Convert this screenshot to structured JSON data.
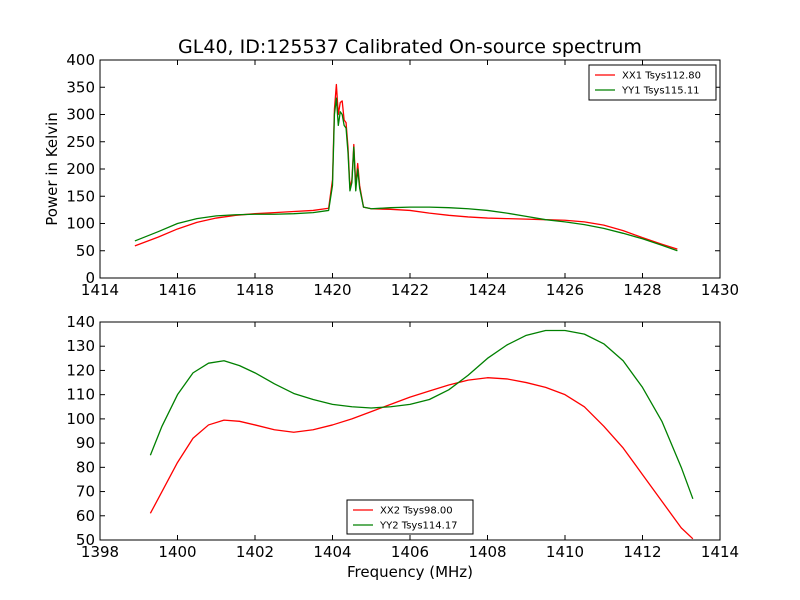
{
  "chart_data": [
    {
      "type": "line",
      "title": "GL40, ID:125537 Calibrated On-source spectrum",
      "xlabel": "",
      "ylabel": "Power in Kelvin",
      "xlim": [
        1414,
        1430
      ],
      "ylim": [
        0,
        400
      ],
      "xticks": [
        1414,
        1416,
        1418,
        1420,
        1422,
        1424,
        1426,
        1428,
        1430
      ],
      "yticks": [
        0,
        50,
        100,
        150,
        200,
        250,
        300,
        350,
        400
      ],
      "grid": false,
      "legend_position": "upper right",
      "series": [
        {
          "name": "XX1 Tsys112.80",
          "color": "#ff0000",
          "x": [
            1414.9,
            1415.5,
            1416,
            1416.5,
            1417,
            1417.5,
            1418,
            1418.5,
            1419,
            1419.5,
            1419.9,
            1420.0,
            1420.05,
            1420.1,
            1420.15,
            1420.2,
            1420.25,
            1420.3,
            1420.35,
            1420.4,
            1420.45,
            1420.5,
            1420.55,
            1420.6,
            1420.65,
            1420.7,
            1420.8,
            1421.0,
            1421.5,
            1422,
            1422.5,
            1423,
            1423.5,
            1424,
            1424.5,
            1425,
            1425.5,
            1426,
            1426.5,
            1427,
            1427.5,
            1428,
            1428.5,
            1428.9
          ],
          "y": [
            59,
            75,
            90,
            102,
            110,
            115,
            118,
            120,
            122,
            124,
            128,
            180,
            310,
            355,
            300,
            322,
            325,
            290,
            285,
            240,
            165,
            180,
            245,
            170,
            210,
            170,
            130,
            127,
            126,
            124,
            119,
            115,
            112,
            110,
            109,
            108,
            107,
            106,
            103,
            97,
            87,
            74,
            62,
            53
          ]
        },
        {
          "name": "YY1 Tsys115.11",
          "color": "#008000",
          "x": [
            1414.9,
            1415.5,
            1416,
            1416.5,
            1417,
            1417.5,
            1418,
            1418.5,
            1419,
            1419.5,
            1419.9,
            1420.0,
            1420.05,
            1420.1,
            1420.15,
            1420.2,
            1420.25,
            1420.3,
            1420.35,
            1420.4,
            1420.45,
            1420.5,
            1420.55,
            1420.6,
            1420.65,
            1420.7,
            1420.8,
            1421.0,
            1421.5,
            1422,
            1422.5,
            1423,
            1423.5,
            1424,
            1424.5,
            1425,
            1425.5,
            1426,
            1426.5,
            1427,
            1427.5,
            1428,
            1428.5,
            1428.9
          ],
          "y": [
            68,
            85,
            100,
            109,
            114,
            116,
            117,
            117,
            118,
            120,
            124,
            170,
            300,
            330,
            280,
            305,
            300,
            280,
            275,
            230,
            160,
            175,
            240,
            160,
            200,
            165,
            130,
            127,
            129,
            130,
            130,
            129,
            127,
            124,
            119,
            113,
            107,
            103,
            98,
            91,
            82,
            72,
            60,
            50
          ]
        }
      ]
    },
    {
      "type": "line",
      "title": "",
      "xlabel": "Frequency (MHz)",
      "ylabel": "",
      "xlim": [
        1398,
        1414
      ],
      "ylim": [
        50,
        140
      ],
      "xticks": [
        1398,
        1400,
        1402,
        1404,
        1406,
        1408,
        1410,
        1412,
        1414
      ],
      "yticks": [
        50,
        60,
        70,
        80,
        90,
        100,
        110,
        120,
        130,
        140
      ],
      "grid": false,
      "legend_position": "lower center",
      "series": [
        {
          "name": "XX2 Tsys98.00",
          "color": "#ff0000",
          "x": [
            1399.3,
            1399.6,
            1400,
            1400.4,
            1400.8,
            1401.2,
            1401.6,
            1402,
            1402.5,
            1403,
            1403.5,
            1404,
            1404.5,
            1405,
            1405.5,
            1406,
            1406.5,
            1407,
            1407.5,
            1408,
            1408.5,
            1409,
            1409.5,
            1410,
            1410.5,
            1411,
            1411.5,
            1412,
            1412.5,
            1413,
            1413.3
          ],
          "y": [
            61,
            70,
            82,
            92,
            97.5,
            99.5,
            99,
            97.5,
            95.5,
            94.5,
            95.5,
            97.5,
            100,
            103,
            106,
            109,
            111.5,
            114,
            116,
            117,
            116.5,
            115,
            113,
            110,
            105,
            97,
            88,
            77,
            66,
            55,
            50.5
          ]
        },
        {
          "name": "YY2 Tsys114.17",
          "color": "#008000",
          "x": [
            1399.3,
            1399.6,
            1400,
            1400.4,
            1400.8,
            1401.2,
            1401.6,
            1402,
            1402.5,
            1403,
            1403.5,
            1404,
            1404.5,
            1405,
            1405.5,
            1406,
            1406.5,
            1407,
            1407.5,
            1408,
            1408.5,
            1409,
            1409.5,
            1410,
            1410.5,
            1411,
            1411.5,
            1412,
            1412.5,
            1413,
            1413.3
          ],
          "y": [
            85,
            97,
            110,
            119,
            123,
            124,
            122,
            119,
            114.5,
            110.5,
            108,
            106,
            105,
            104.5,
            105,
            106,
            108,
            112,
            118,
            125,
            130.5,
            134.5,
            136.5,
            136.5,
            135,
            131,
            124,
            113,
            99,
            80,
            67
          ]
        }
      ]
    }
  ]
}
